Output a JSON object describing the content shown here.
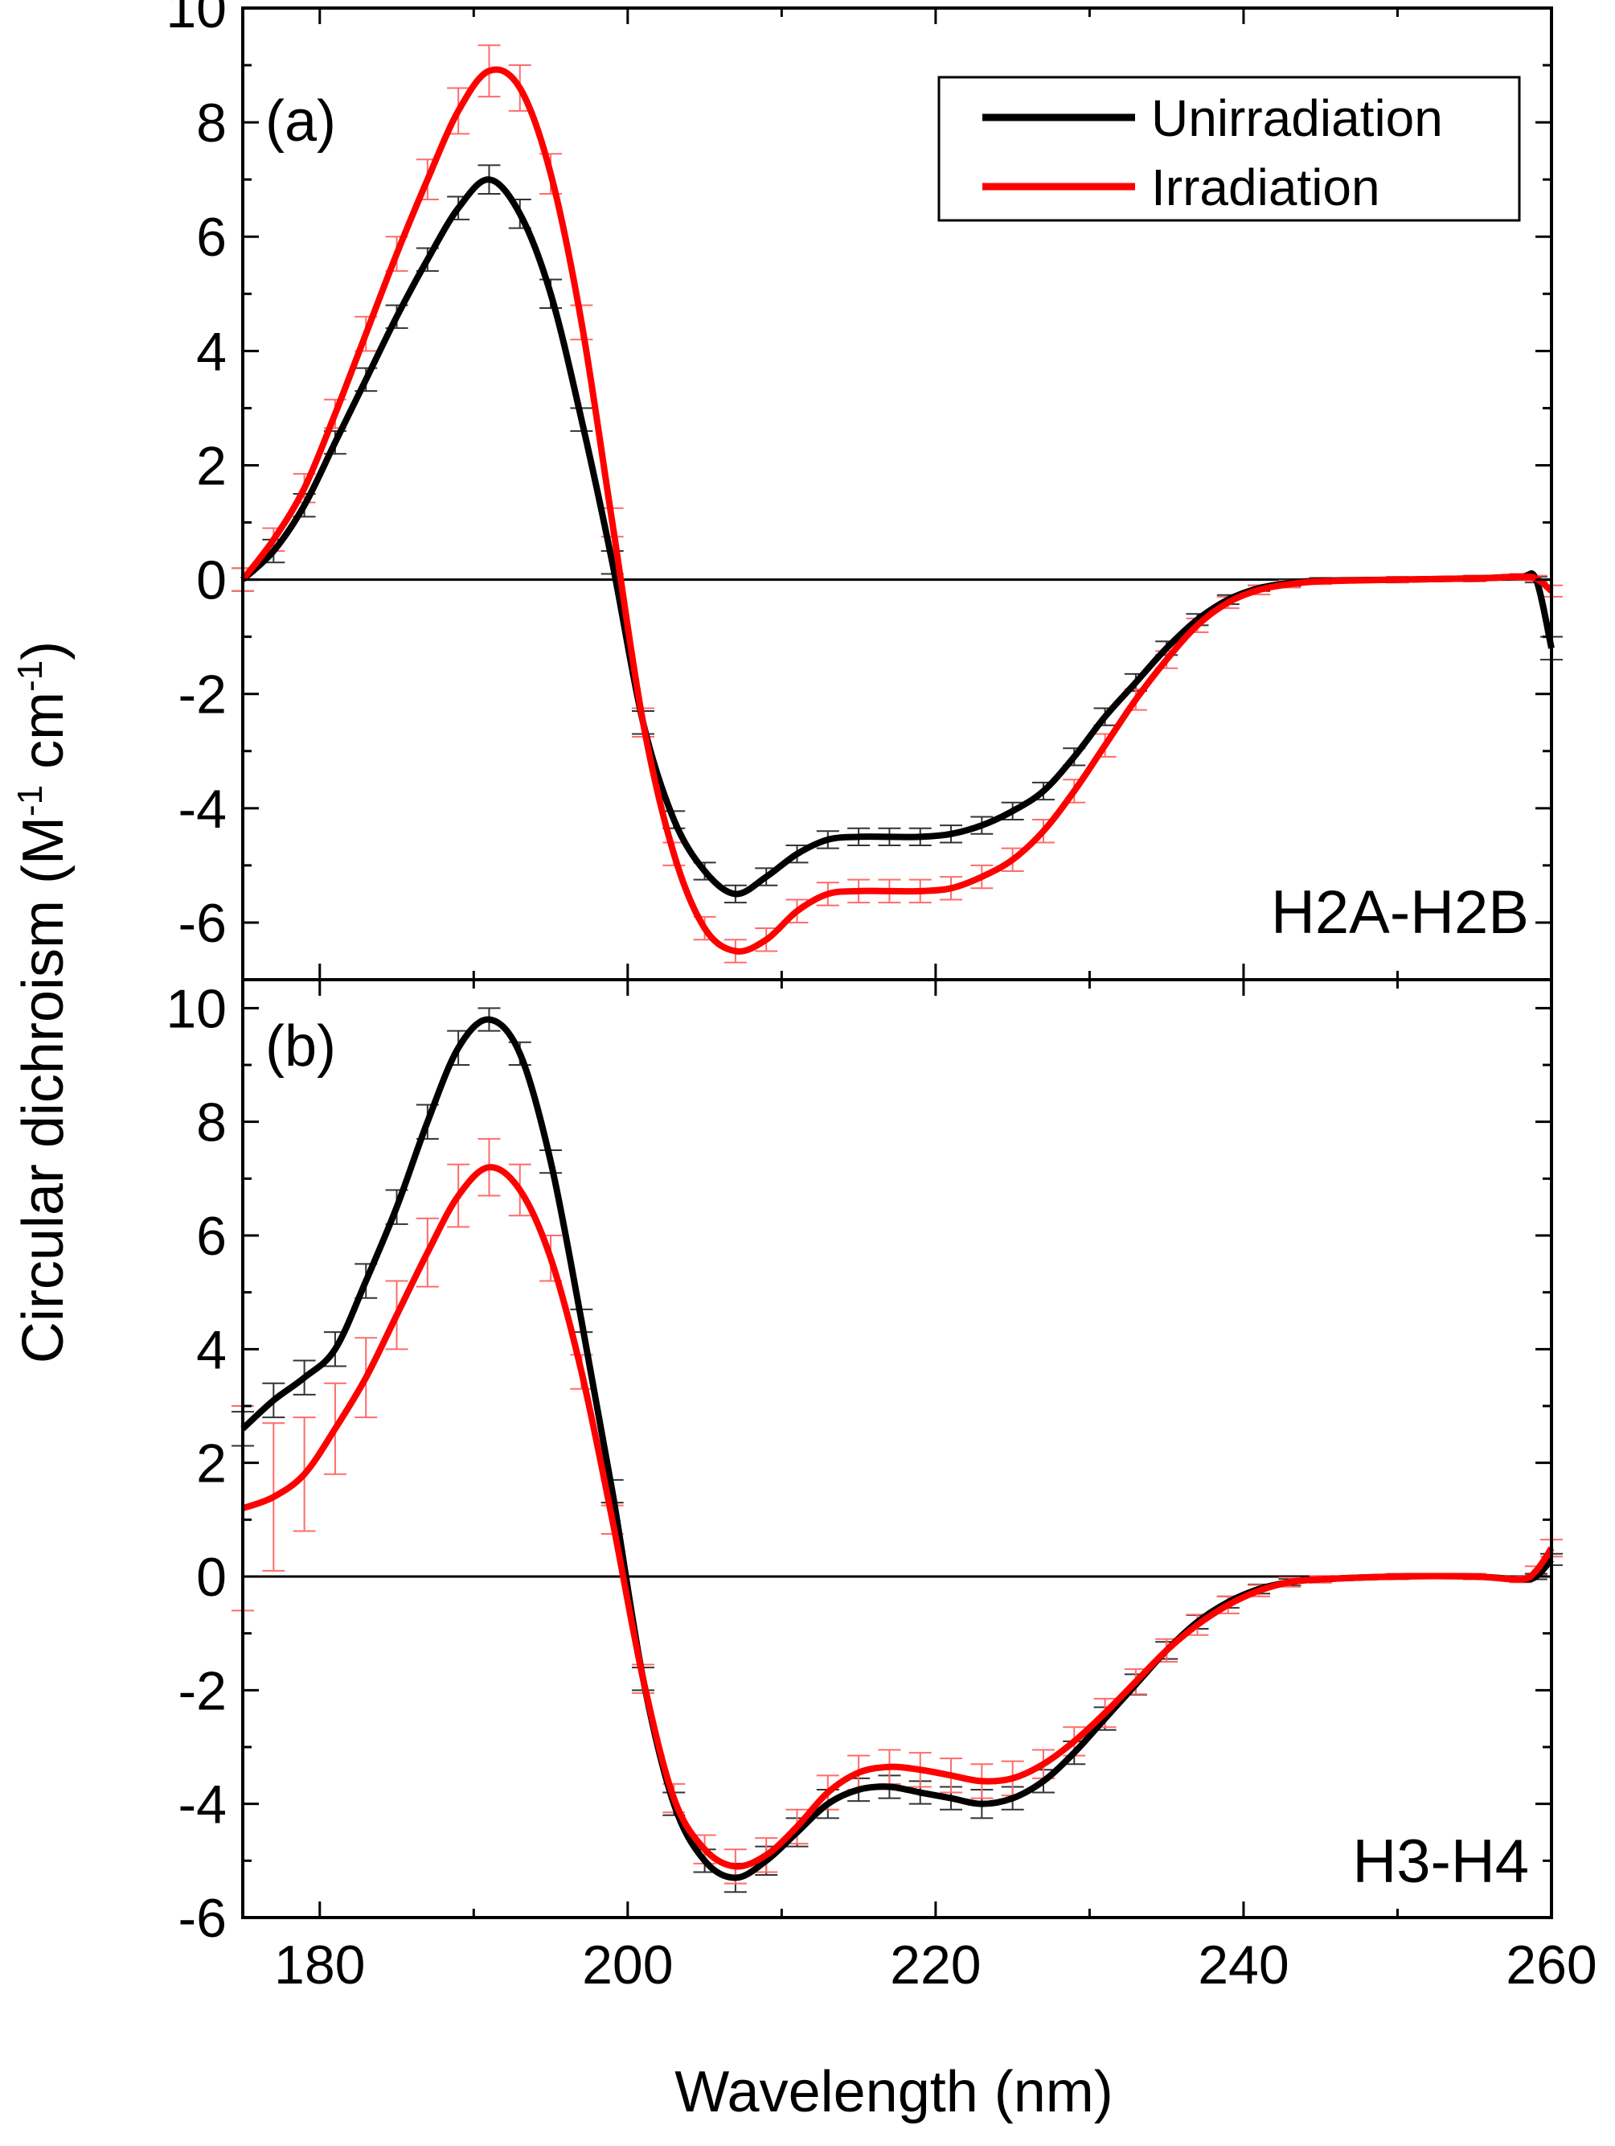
{
  "figure": {
    "ylabel_main": "Circular dichroism (M",
    "ylabel_sup1": "-1",
    "ylabel_mid": " cm",
    "ylabel_sup2": "-1",
    "ylabel_end": ")"
  },
  "legend": {
    "entries": [
      {
        "label": "Unirradiation",
        "color": "#000000"
      },
      {
        "label": "Irradiation",
        "color": "#ff0000"
      }
    ]
  },
  "colors": {
    "unirradiation": "#000000",
    "irradiation": "#ff0000",
    "unirradiation_err": "#333333",
    "irradiation_err": "#ff6b6b"
  },
  "chart_data": [
    {
      "type": "line",
      "panel": "(a)",
      "name": "H2A-H2B",
      "xlabel": "",
      "ylabel": "Circular dichroism (M-1 cm-1)",
      "xlim": [
        175,
        260
      ],
      "ylim": [
        -7,
        10
      ],
      "xticks": [
        180,
        200,
        220,
        240,
        260
      ],
      "xtick_labels": [
        "",
        "",
        "",
        "",
        ""
      ],
      "yticks": [
        -6,
        -4,
        -2,
        0,
        2,
        4,
        6,
        8,
        10
      ],
      "ytick_labels": [
        "-6",
        "-4",
        "-2",
        "0",
        "2",
        "4",
        "6",
        "8",
        "10"
      ],
      "zero_line": true,
      "series": [
        {
          "name": "Unirradiation",
          "x": [
            175,
            177,
            179,
            181,
            183,
            185,
            187,
            189,
            191,
            193,
            195,
            197,
            199,
            201,
            203,
            205,
            207,
            209,
            211,
            213,
            215,
            217,
            219,
            221,
            223,
            225,
            227,
            229,
            231,
            233,
            235,
            237,
            239,
            241,
            243,
            245,
            250,
            255,
            258,
            259,
            260
          ],
          "y": [
            0,
            0.5,
            1.3,
            2.4,
            3.5,
            4.6,
            5.6,
            6.5,
            7.0,
            6.4,
            5.0,
            2.8,
            0.3,
            -2.5,
            -4.2,
            -5.1,
            -5.5,
            -5.2,
            -4.8,
            -4.55,
            -4.5,
            -4.5,
            -4.5,
            -4.45,
            -4.3,
            -4.05,
            -3.7,
            -3.1,
            -2.4,
            -1.8,
            -1.2,
            -0.7,
            -0.35,
            -0.15,
            -0.06,
            -0.02,
            0.0,
            0.02,
            0.05,
            0.0,
            -1.2
          ],
          "error": [
            0.2,
            0.2,
            0.2,
            0.2,
            0.2,
            0.2,
            0.2,
            0.2,
            0.25,
            0.25,
            0.25,
            0.2,
            0.2,
            0.2,
            0.15,
            0.15,
            0.15,
            0.15,
            0.15,
            0.15,
            0.15,
            0.15,
            0.15,
            0.15,
            0.15,
            0.15,
            0.15,
            0.15,
            0.15,
            0.15,
            0.12,
            0.1,
            0.08,
            0.05,
            0.05,
            0.05,
            0.05,
            0.05,
            0.05,
            0.05,
            0.2
          ]
        },
        {
          "name": "Irradiation",
          "x": [
            175,
            177,
            179,
            181,
            183,
            185,
            187,
            189,
            191,
            193,
            195,
            197,
            199,
            201,
            203,
            205,
            207,
            209,
            211,
            213,
            215,
            217,
            219,
            221,
            223,
            225,
            227,
            229,
            231,
            233,
            235,
            237,
            239,
            241,
            243,
            245,
            250,
            255,
            258,
            259,
            260
          ],
          "y": [
            0,
            0.7,
            1.6,
            2.9,
            4.3,
            5.7,
            7.0,
            8.2,
            8.9,
            8.6,
            7.1,
            4.5,
            1.0,
            -2.5,
            -4.8,
            -6.1,
            -6.5,
            -6.3,
            -5.8,
            -5.5,
            -5.45,
            -5.45,
            -5.45,
            -5.4,
            -5.2,
            -4.9,
            -4.4,
            -3.7,
            -2.9,
            -2.1,
            -1.4,
            -0.8,
            -0.4,
            -0.18,
            -0.08,
            -0.03,
            0.0,
            0.02,
            0.05,
            0.02,
            -0.2
          ],
          "error": [
            0.2,
            0.2,
            0.25,
            0.25,
            0.3,
            0.3,
            0.35,
            0.4,
            0.45,
            0.4,
            0.35,
            0.3,
            0.25,
            0.25,
            0.2,
            0.2,
            0.2,
            0.2,
            0.2,
            0.2,
            0.2,
            0.2,
            0.2,
            0.2,
            0.2,
            0.2,
            0.2,
            0.2,
            0.2,
            0.18,
            0.15,
            0.12,
            0.1,
            0.08,
            0.06,
            0.05,
            0.05,
            0.05,
            0.05,
            0.05,
            0.1
          ]
        }
      ]
    },
    {
      "type": "line",
      "panel": "(b)",
      "name": "H3-H4",
      "xlabel": "Wavelength (nm)",
      "ylabel": "Circular dichroism (M-1 cm-1)",
      "xlim": [
        175,
        260
      ],
      "ylim": [
        -6,
        10.5
      ],
      "xticks": [
        180,
        200,
        220,
        240,
        260
      ],
      "xtick_labels": [
        "180",
        "200",
        "220",
        "240",
        "260"
      ],
      "yticks": [
        -6,
        -4,
        -2,
        0,
        2,
        4,
        6,
        8,
        10
      ],
      "ytick_labels": [
        "-6",
        "-4",
        "-2",
        "0",
        "2",
        "4",
        "6",
        "8",
        "10"
      ],
      "zero_line": true,
      "series": [
        {
          "name": "Unirradiation",
          "x": [
            175,
            177,
            179,
            181,
            183,
            185,
            187,
            189,
            191,
            193,
            195,
            197,
            199,
            201,
            203,
            205,
            207,
            209,
            211,
            213,
            215,
            217,
            219,
            221,
            223,
            225,
            227,
            229,
            231,
            233,
            235,
            237,
            239,
            241,
            243,
            245,
            250,
            255,
            258,
            259,
            260
          ],
          "y": [
            2.6,
            3.1,
            3.5,
            4.0,
            5.2,
            6.5,
            8.0,
            9.3,
            9.8,
            9.2,
            7.3,
            4.5,
            1.5,
            -1.8,
            -4.0,
            -5.0,
            -5.3,
            -5.0,
            -4.5,
            -4.0,
            -3.75,
            -3.7,
            -3.8,
            -3.9,
            -4.0,
            -3.9,
            -3.6,
            -3.1,
            -2.5,
            -1.9,
            -1.3,
            -0.8,
            -0.45,
            -0.22,
            -0.1,
            -0.05,
            0.0,
            0.0,
            -0.05,
            0.0,
            0.3
          ],
          "error": [
            0.3,
            0.3,
            0.3,
            0.3,
            0.3,
            0.3,
            0.3,
            0.3,
            0.2,
            0.2,
            0.2,
            0.2,
            0.2,
            0.2,
            0.2,
            0.2,
            0.25,
            0.25,
            0.25,
            0.25,
            0.2,
            0.2,
            0.2,
            0.2,
            0.25,
            0.2,
            0.2,
            0.2,
            0.2,
            0.18,
            0.15,
            0.12,
            0.1,
            0.08,
            0.06,
            0.05,
            0.05,
            0.05,
            0.05,
            0.05,
            0.1
          ]
        },
        {
          "name": "Irradiation",
          "x": [
            175,
            177,
            179,
            181,
            183,
            185,
            187,
            189,
            191,
            193,
            195,
            197,
            199,
            201,
            203,
            205,
            207,
            209,
            211,
            213,
            215,
            217,
            219,
            221,
            223,
            225,
            227,
            229,
            231,
            233,
            235,
            237,
            239,
            241,
            243,
            245,
            250,
            255,
            258,
            259,
            260
          ],
          "y": [
            1.2,
            1.4,
            1.8,
            2.6,
            3.5,
            4.6,
            5.7,
            6.7,
            7.2,
            6.8,
            5.6,
            3.6,
            1.0,
            -1.8,
            -3.9,
            -4.8,
            -5.1,
            -4.9,
            -4.4,
            -3.8,
            -3.45,
            -3.35,
            -3.4,
            -3.5,
            -3.6,
            -3.55,
            -3.3,
            -2.9,
            -2.4,
            -1.85,
            -1.3,
            -0.85,
            -0.5,
            -0.25,
            -0.1,
            -0.05,
            0.0,
            0.0,
            -0.05,
            0.1,
            0.5
          ],
          "error": [
            1.8,
            1.3,
            1.0,
            0.8,
            0.7,
            0.6,
            0.6,
            0.55,
            0.5,
            0.45,
            0.4,
            0.3,
            0.25,
            0.25,
            0.25,
            0.25,
            0.3,
            0.3,
            0.3,
            0.3,
            0.3,
            0.3,
            0.3,
            0.3,
            0.3,
            0.3,
            0.25,
            0.25,
            0.25,
            0.22,
            0.2,
            0.18,
            0.15,
            0.1,
            0.08,
            0.06,
            0.05,
            0.05,
            0.05,
            0.08,
            0.15
          ]
        }
      ]
    }
  ]
}
